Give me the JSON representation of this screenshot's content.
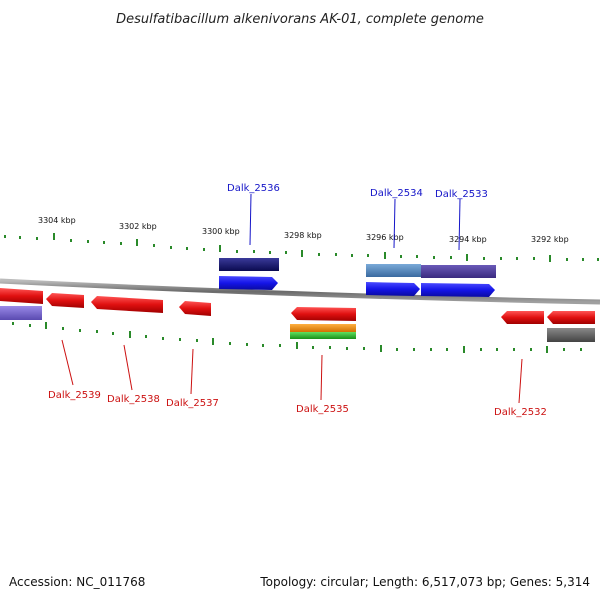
{
  "title": "Desulfatibacillum alkenivorans AK-01, complete genome",
  "footer": {
    "accession": "Accession: NC_011768",
    "summary": "Topology: circular; Length: 6,517,073 bp; Genes: 5,314"
  },
  "scale_labels": [
    "3304 kbp",
    "3302 kbp",
    "3300 kbp",
    "3298 kbp",
    "3296 kbp",
    "3294 kbp",
    "3292 kbp"
  ],
  "gene_labels": [
    {
      "id": "g2536",
      "text": "Dalk_2536",
      "color": "#1515c8"
    },
    {
      "id": "g2534",
      "text": "Dalk_2534",
      "color": "#1515c8"
    },
    {
      "id": "g2533",
      "text": "Dalk_2533",
      "color": "#1515c8"
    },
    {
      "id": "g2539",
      "text": "Dalk_2539",
      "color": "#cc1111"
    },
    {
      "id": "g2538",
      "text": "Dalk_2538",
      "color": "#cc1111"
    },
    {
      "id": "g2537",
      "text": "Dalk_2537",
      "color": "#cc1111"
    },
    {
      "id": "g2535",
      "text": "Dalk_2535",
      "color": "#cc1111"
    },
    {
      "id": "g2532",
      "text": "Dalk_2532",
      "color": "#cc1111"
    }
  ],
  "colors": {
    "forward_strand": "#1a1ae6",
    "reverse_strand": "#e61a1a",
    "backbone": "#8a8a8a",
    "tick": "#2a8a2a"
  }
}
